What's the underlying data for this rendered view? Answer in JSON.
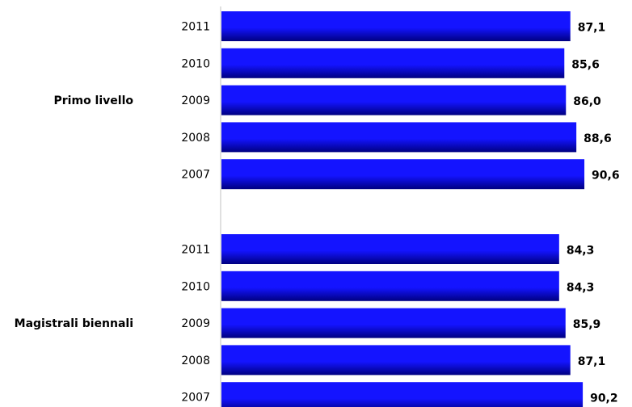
{
  "chart_data": {
    "type": "bar",
    "orientation": "horizontal",
    "xlim": [
      0,
      92
    ],
    "groups": [
      {
        "name": "Primo livello",
        "categories": [
          "2011",
          "2010",
          "2009",
          "2008",
          "2007"
        ],
        "values": [
          87.1,
          85.6,
          86.0,
          88.6,
          90.6
        ],
        "labels": [
          "87,1",
          "85,6",
          "86,0",
          "88,6",
          "90,6"
        ]
      },
      {
        "name": "Magistrali biennali",
        "categories": [
          "2011",
          "2010",
          "2009",
          "2008",
          "2007"
        ],
        "values": [
          84.3,
          84.3,
          85.9,
          87.1,
          90.2
        ],
        "labels": [
          "84,3",
          "84,3",
          "85,9",
          "87,1",
          "90,2"
        ]
      }
    ],
    "colors": {
      "bar": "#1414ff",
      "bar_dark": "#000080",
      "axis": "#c0c0c0"
    },
    "grid": false,
    "legend": "none"
  }
}
